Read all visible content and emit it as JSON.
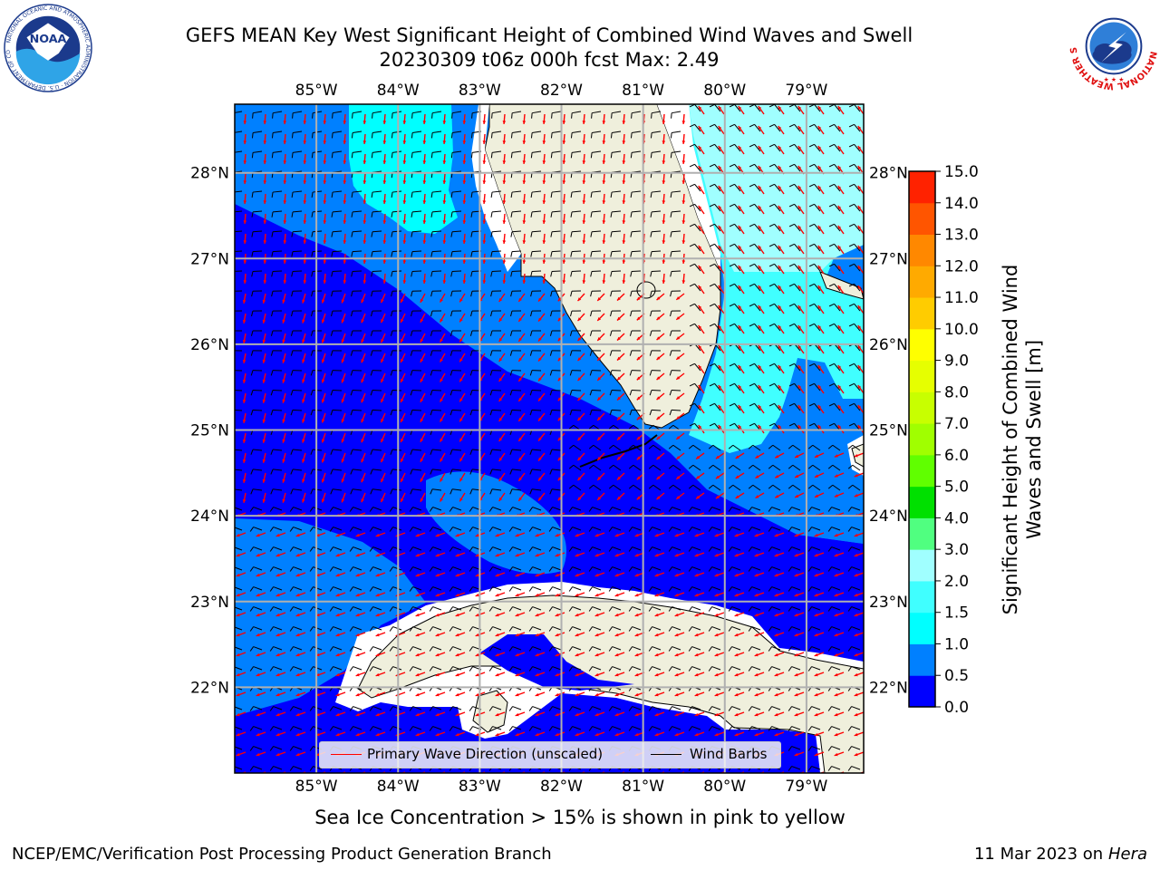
{
  "title": {
    "line1": "GEFS MEAN Key West Significant Height of Combined Wind Waves and Swell",
    "line2": "20230309 t06z 000h fcst   Max: 2.49"
  },
  "map": {
    "lon_ticks": [
      "85°W",
      "84°W",
      "83°W",
      "82°W",
      "81°W",
      "80°W",
      "79°W"
    ],
    "lat_ticks": [
      "22°N",
      "23°N",
      "24°N",
      "25°N",
      "26°N",
      "27°N",
      "28°N"
    ],
    "extent": {
      "lon_min": -86.0,
      "lon_max": -78.3,
      "lat_min": 21.0,
      "lat_max": 28.8
    },
    "land_color": "#efefdc",
    "grid_color": "#b0b0b0"
  },
  "colorbar": {
    "label": "Significant Height of Combined Wind Waves and Swell [m]",
    "ticks": [
      "0.0",
      "0.5",
      "1.0",
      "1.5",
      "2.0",
      "3.0",
      "4.0",
      "5.0",
      "6.0",
      "7.0",
      "8.0",
      "9.0",
      "10.0",
      "11.0",
      "12.0",
      "13.0",
      "14.0",
      "15.0"
    ],
    "colors": [
      "#0000ff",
      "#0080ff",
      "#00ffff",
      "#40ffff",
      "#a0ffff",
      "#50ff80",
      "#00e000",
      "#60ff00",
      "#a0ff00",
      "#c8ff00",
      "#e6ff00",
      "#ffff00",
      "#ffcc00",
      "#ffaa00",
      "#ff8800",
      "#ff5500",
      "#ff2200"
    ]
  },
  "legend": {
    "wave_direction": "Primary Wave Direction (unscaled)",
    "wind_barbs": "Wind Barbs",
    "wave_color": "#ff0000",
    "barb_color": "#000000"
  },
  "footer": {
    "note": "Sea Ice Concentration > 15% is shown in pink to yellow",
    "credit": "NCEP/EMC/Verification Post Processing Product Generation Branch",
    "date": "11 Mar 2023 on",
    "host": "Hera"
  },
  "logos": {
    "noaa_text": "NOAA",
    "noaa_ring": "NATIONAL OCEANIC AND ATMOSPHERIC ADMINISTRATION · U.S. DEPARTMENT OF COMMERCE",
    "nws_ring": "NATIONAL WEATHER SERVICE"
  }
}
